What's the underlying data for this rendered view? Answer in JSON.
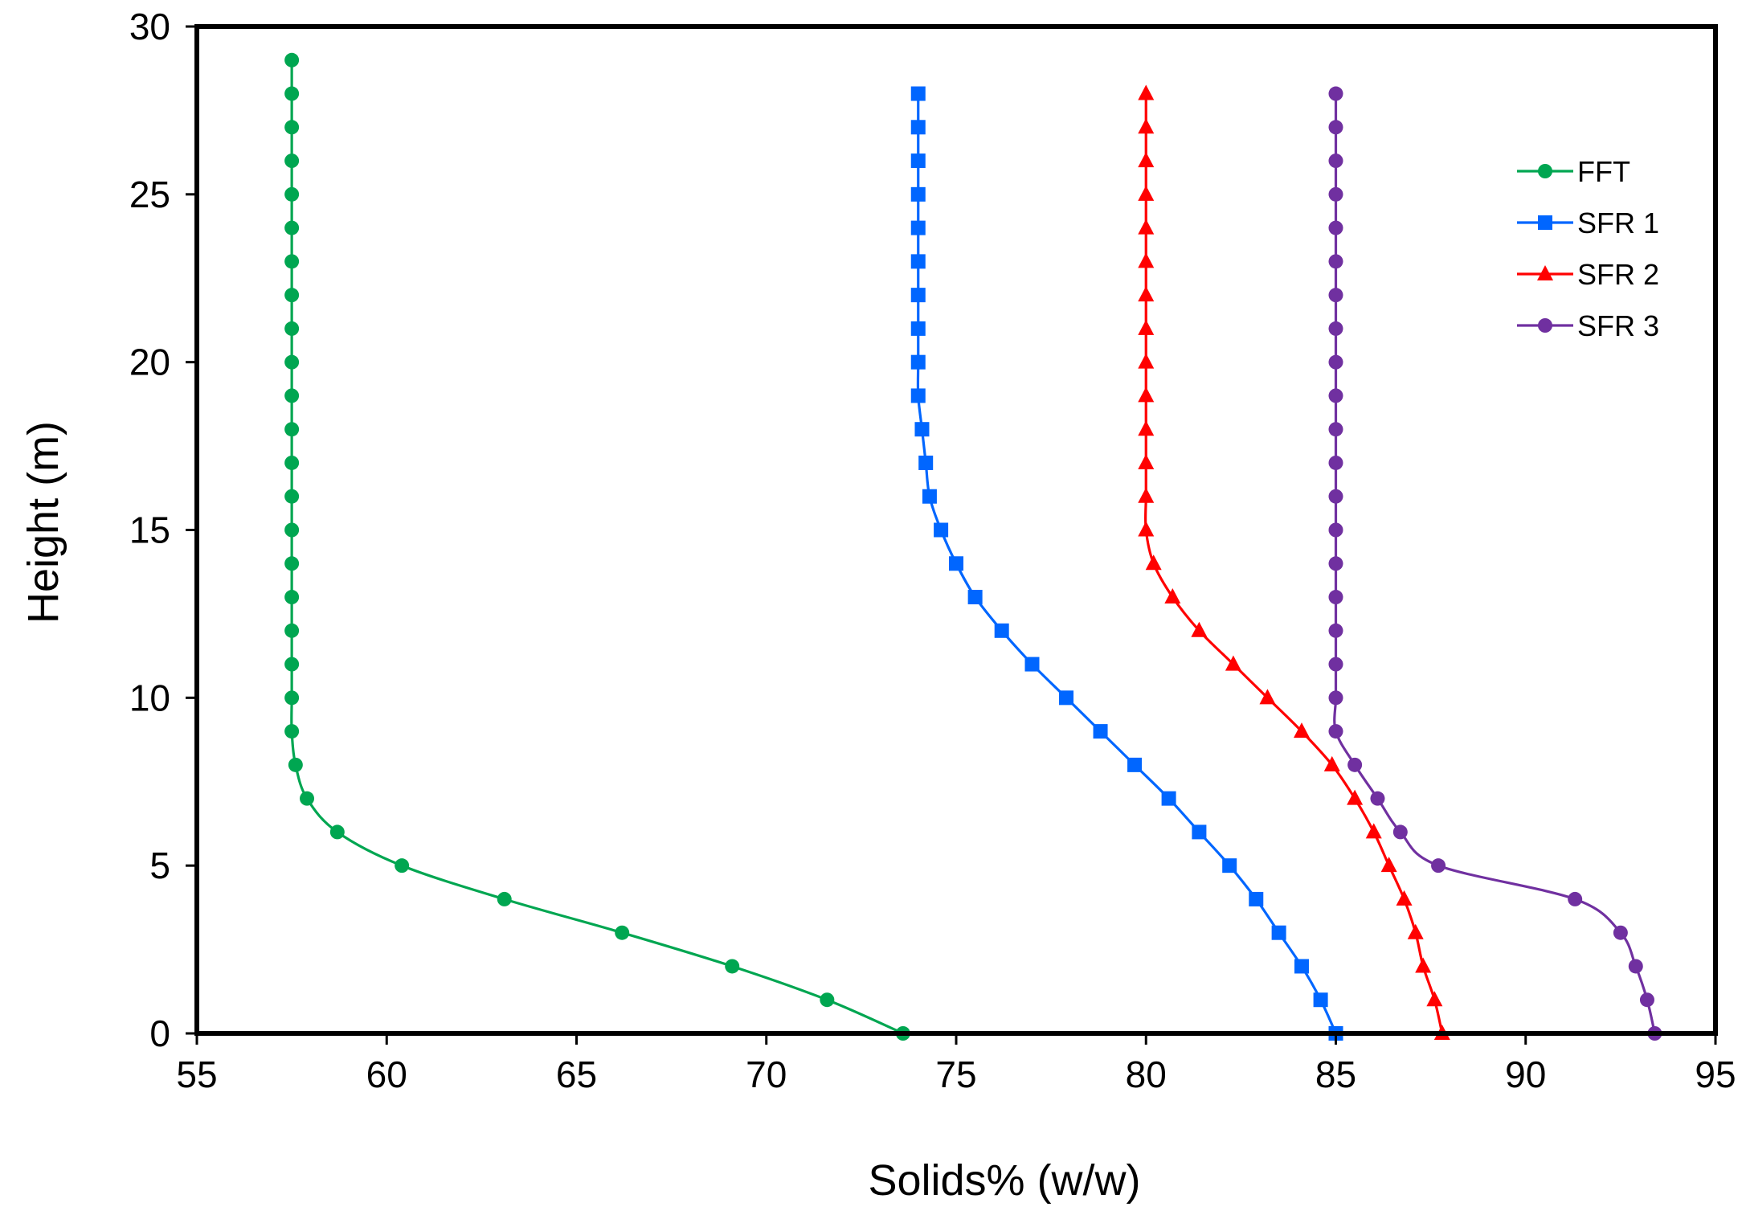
{
  "chart_data": {
    "type": "line",
    "title": "",
    "xlabel": "Solids% (w/w)",
    "ylabel": "Height (m)",
    "xlim": [
      55,
      95
    ],
    "ylim": [
      0,
      30
    ],
    "xticks": [
      55,
      60,
      65,
      70,
      75,
      80,
      85,
      90,
      95
    ],
    "yticks": [
      0,
      5,
      10,
      15,
      20,
      25,
      30
    ],
    "grid": false,
    "legend_position": "top-right",
    "series": [
      {
        "name": "FFT",
        "color": "#00a651",
        "marker": "circle",
        "points": [
          [
            73.6,
            0
          ],
          [
            71.6,
            1
          ],
          [
            69.1,
            2
          ],
          [
            66.2,
            3
          ],
          [
            63.1,
            4
          ],
          [
            60.4,
            5
          ],
          [
            58.7,
            6
          ],
          [
            57.9,
            7
          ],
          [
            57.6,
            8
          ],
          [
            57.5,
            9
          ],
          [
            57.5,
            10
          ],
          [
            57.5,
            11
          ],
          [
            57.5,
            12
          ],
          [
            57.5,
            13
          ],
          [
            57.5,
            14
          ],
          [
            57.5,
            15
          ],
          [
            57.5,
            16
          ],
          [
            57.5,
            17
          ],
          [
            57.5,
            18
          ],
          [
            57.5,
            19
          ],
          [
            57.5,
            20
          ],
          [
            57.5,
            21
          ],
          [
            57.5,
            22
          ],
          [
            57.5,
            23
          ],
          [
            57.5,
            24
          ],
          [
            57.5,
            25
          ],
          [
            57.5,
            26
          ],
          [
            57.5,
            27
          ],
          [
            57.5,
            28
          ],
          [
            57.5,
            29
          ]
        ]
      },
      {
        "name": "SFR 1",
        "color": "#0066ff",
        "marker": "square",
        "points": [
          [
            85.0,
            0
          ],
          [
            84.6,
            1
          ],
          [
            84.1,
            2
          ],
          [
            83.5,
            3
          ],
          [
            82.9,
            4
          ],
          [
            82.2,
            5
          ],
          [
            81.4,
            6
          ],
          [
            80.6,
            7
          ],
          [
            79.7,
            8
          ],
          [
            78.8,
            9
          ],
          [
            77.9,
            10
          ],
          [
            77.0,
            11
          ],
          [
            76.2,
            12
          ],
          [
            75.5,
            13
          ],
          [
            75.0,
            14
          ],
          [
            74.6,
            15
          ],
          [
            74.3,
            16
          ],
          [
            74.2,
            17
          ],
          [
            74.1,
            18
          ],
          [
            74.0,
            19
          ],
          [
            74.0,
            20
          ],
          [
            74.0,
            21
          ],
          [
            74.0,
            22
          ],
          [
            74.0,
            23
          ],
          [
            74.0,
            24
          ],
          [
            74.0,
            25
          ],
          [
            74.0,
            26
          ],
          [
            74.0,
            27
          ],
          [
            74.0,
            28
          ]
        ]
      },
      {
        "name": "SFR 2",
        "color": "#ff0000",
        "marker": "triangle",
        "points": [
          [
            87.8,
            0
          ],
          [
            87.6,
            1
          ],
          [
            87.3,
            2
          ],
          [
            87.1,
            3
          ],
          [
            86.8,
            4
          ],
          [
            86.4,
            5
          ],
          [
            86.0,
            6
          ],
          [
            85.5,
            7
          ],
          [
            84.9,
            8
          ],
          [
            84.1,
            9
          ],
          [
            83.2,
            10
          ],
          [
            82.3,
            11
          ],
          [
            81.4,
            12
          ],
          [
            80.7,
            13
          ],
          [
            80.2,
            14
          ],
          [
            80.0,
            15
          ],
          [
            80.0,
            16
          ],
          [
            80.0,
            17
          ],
          [
            80.0,
            18
          ],
          [
            80.0,
            19
          ],
          [
            80.0,
            20
          ],
          [
            80.0,
            21
          ],
          [
            80.0,
            22
          ],
          [
            80.0,
            23
          ],
          [
            80.0,
            24
          ],
          [
            80.0,
            25
          ],
          [
            80.0,
            26
          ],
          [
            80.0,
            27
          ],
          [
            80.0,
            28
          ]
        ]
      },
      {
        "name": "SFR 3",
        "color": "#7030a0",
        "marker": "circle",
        "points": [
          [
            93.4,
            0
          ],
          [
            93.2,
            1
          ],
          [
            92.9,
            2
          ],
          [
            92.5,
            3
          ],
          [
            91.3,
            4
          ],
          [
            87.7,
            5
          ],
          [
            86.7,
            6
          ],
          [
            86.1,
            7
          ],
          [
            85.5,
            8
          ],
          [
            85.0,
            9
          ],
          [
            85.0,
            10
          ],
          [
            85.0,
            11
          ],
          [
            85.0,
            12
          ],
          [
            85.0,
            13
          ],
          [
            85.0,
            14
          ],
          [
            85.0,
            15
          ],
          [
            85.0,
            16
          ],
          [
            85.0,
            17
          ],
          [
            85.0,
            18
          ],
          [
            85.0,
            19
          ],
          [
            85.0,
            20
          ],
          [
            85.0,
            21
          ],
          [
            85.0,
            22
          ],
          [
            85.0,
            23
          ],
          [
            85.0,
            24
          ],
          [
            85.0,
            25
          ],
          [
            85.0,
            26
          ],
          [
            85.0,
            27
          ],
          [
            85.0,
            28
          ]
        ]
      }
    ]
  }
}
